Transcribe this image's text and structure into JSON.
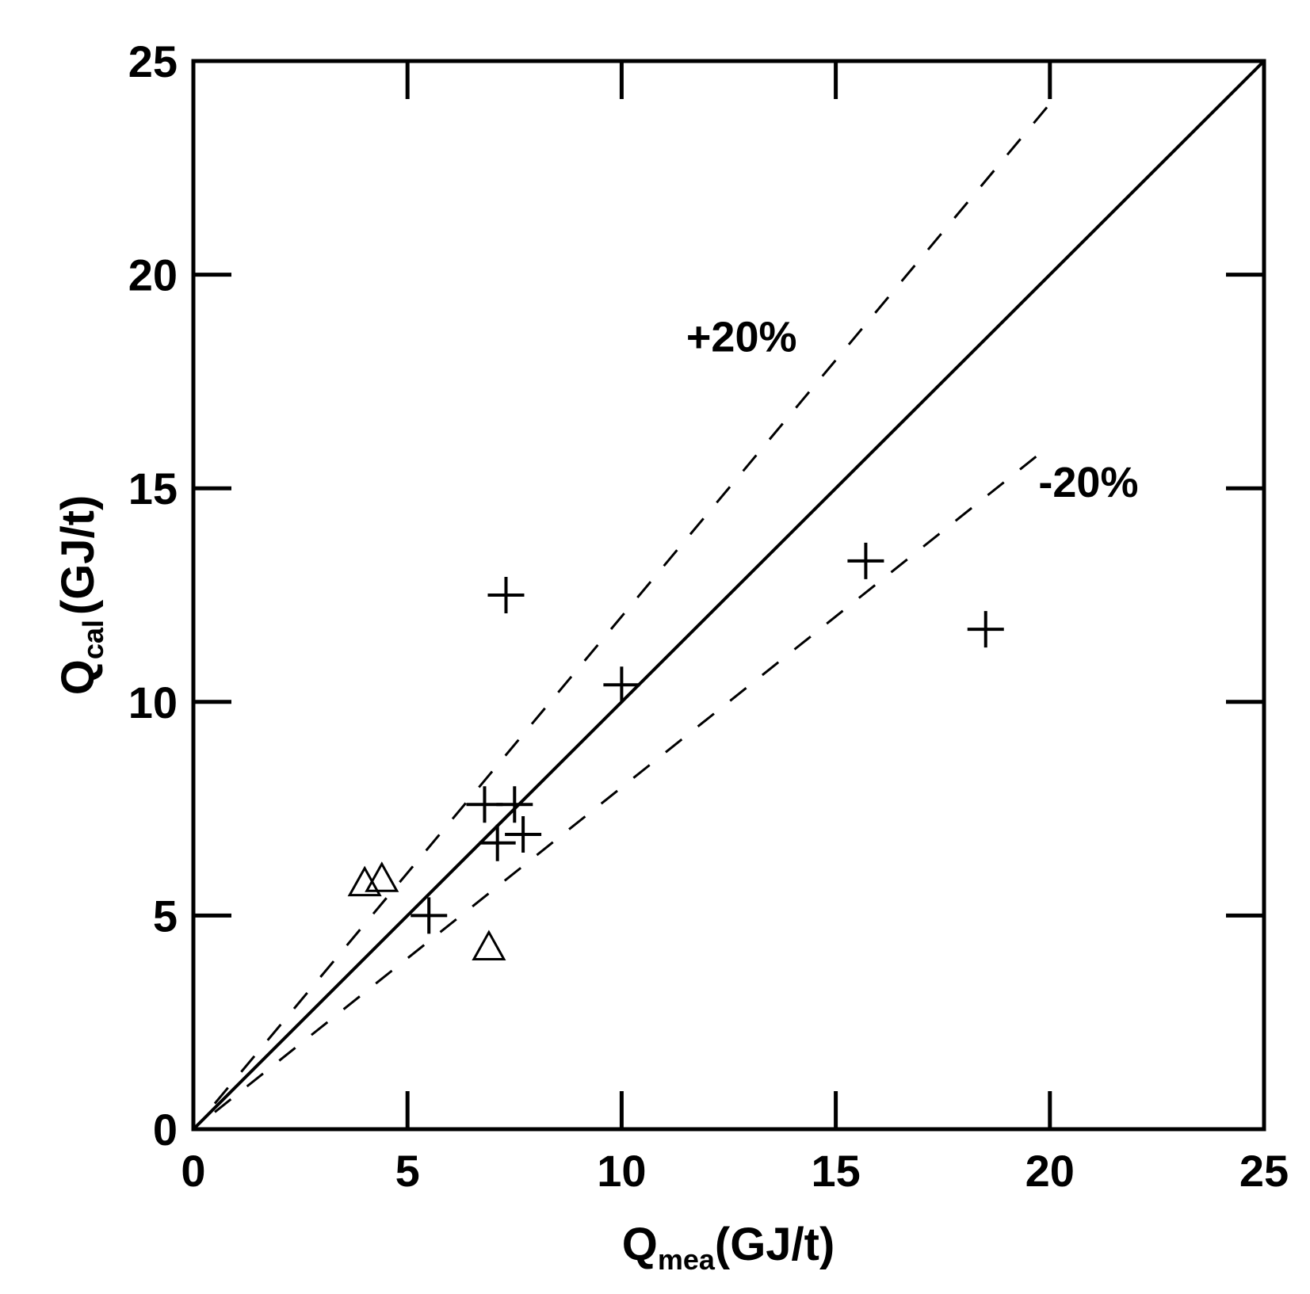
{
  "chart_data": {
    "type": "scatter",
    "title": "",
    "xlabel": {
      "main": "Q",
      "sub": "mea",
      "unit": "(GJ/t)"
    },
    "ylabel": {
      "main": "Q",
      "sub": "cal",
      "unit": "(GJ/t)"
    },
    "xlim": [
      0,
      25
    ],
    "ylim": [
      0,
      25
    ],
    "xticks": [
      0,
      5,
      10,
      15,
      20,
      25
    ],
    "yticks": [
      0,
      5,
      10,
      15,
      20,
      25
    ],
    "grid": false,
    "series": [
      {
        "marker": "plus",
        "points": [
          {
            "x": 5.5,
            "y": 5.0
          },
          {
            "x": 6.8,
            "y": 7.6
          },
          {
            "x": 7.5,
            "y": 7.6
          },
          {
            "x": 7.1,
            "y": 6.7
          },
          {
            "x": 7.7,
            "y": 6.9
          },
          {
            "x": 7.3,
            "y": 12.5
          },
          {
            "x": 10.0,
            "y": 10.4
          },
          {
            "x": 15.7,
            "y": 13.3
          },
          {
            "x": 18.5,
            "y": 11.7
          }
        ]
      },
      {
        "marker": "triangle",
        "points": [
          {
            "x": 4.0,
            "y": 5.7
          },
          {
            "x": 4.4,
            "y": 5.8
          },
          {
            "x": 6.9,
            "y": 4.2
          }
        ]
      }
    ],
    "reference_lines": [
      {
        "style": "solid",
        "from": [
          0,
          0
        ],
        "to": [
          25,
          25
        ]
      },
      {
        "style": "dashed",
        "from": [
          0.5,
          0.6
        ],
        "to": [
          20,
          24
        ],
        "label": "+20%",
        "label_at": [
          12.8,
          18.2
        ]
      },
      {
        "style": "dashed",
        "from": [
          0.5,
          0.4
        ],
        "to": [
          20,
          16
        ],
        "label": "-20%",
        "label_at": [
          20.9,
          14.8
        ]
      }
    ]
  }
}
